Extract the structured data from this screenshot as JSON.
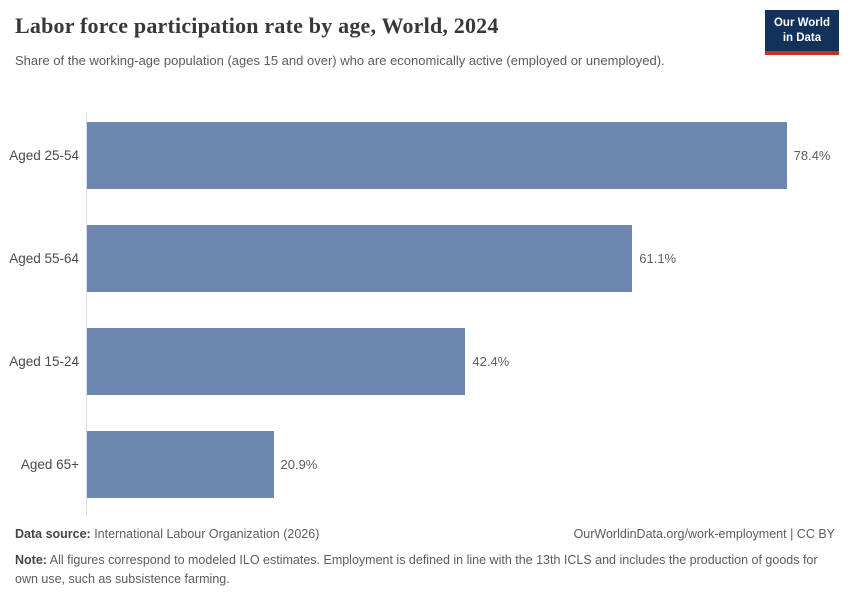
{
  "header": {
    "title": "Labor force participation rate by age, World, 2024",
    "subtitle": "Share of the working-age population (ages 15 and over) who are economically active (employed or unemployed)."
  },
  "logo": {
    "line1": "Our World",
    "line2": "in Data"
  },
  "chart_data": {
    "type": "bar",
    "orientation": "horizontal",
    "title": "Labor force participation rate by age, World, 2024",
    "categories": [
      "Aged 25-54",
      "Aged 55-64",
      "Aged 15-24",
      "Aged 65+"
    ],
    "values": [
      78.4,
      61.1,
      42.4,
      20.9
    ],
    "value_labels": [
      "78.4%",
      "61.1%",
      "42.4%",
      "20.9%"
    ],
    "unit": "%",
    "xlim": [
      0,
      85.5
    ],
    "grid": false,
    "legend": "none",
    "bar_color": "#6e87b1"
  },
  "footer": {
    "datasource_label": "Data source:",
    "datasource_value": " International Labour Organization (2026)",
    "link": "OurWorldinData.org/work-employment | CC BY",
    "note_label": "Note:",
    "note_text": " All figures correspond to modeled ILO estimates. Employment is defined in line with the 13th ICLS and includes the production of goods for own use, such as subsistence farming."
  },
  "colors": {
    "bar": "#6e87b1",
    "logo_background": "#12315b",
    "logo_accent_red": "#c7302a",
    "axis_line": "#dcdcdc",
    "title_text": "#383838",
    "body_text": "#5b5b5b"
  }
}
